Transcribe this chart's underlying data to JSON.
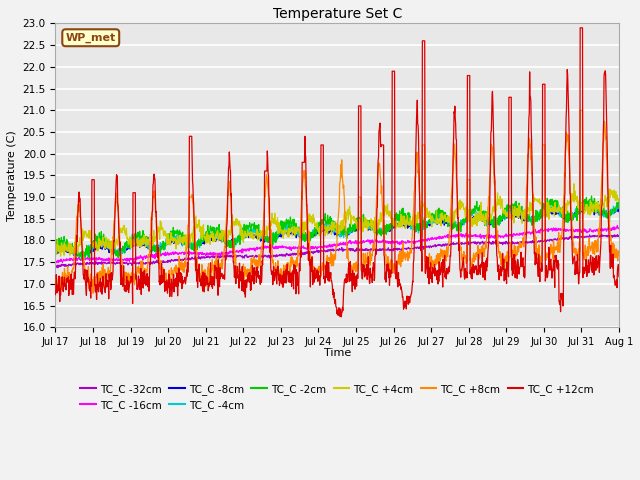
{
  "title": "Temperature Set C",
  "xlabel": "Time",
  "ylabel": "Temperature (C)",
  "ylim": [
    16.0,
    23.0
  ],
  "yticks": [
    16.0,
    16.5,
    17.0,
    17.5,
    18.0,
    18.5,
    19.0,
    19.5,
    20.0,
    20.5,
    21.0,
    21.5,
    22.0,
    22.5,
    23.0
  ],
  "bg_color": "#e8e8e8",
  "fig_bg_color": "#f2f2f2",
  "grid_color": "#ffffff",
  "annotation_text": "WP_met",
  "annotation_bg": "#ffffcc",
  "annotation_border": "#8B4513",
  "series_colors": {
    "TC_C -32cm": "#aa00cc",
    "TC_C -16cm": "#ff00ff",
    "TC_C -8cm": "#0000dd",
    "TC_C -4cm": "#00cccc",
    "TC_C -2cm": "#00cc00",
    "TC_C +4cm": "#cccc00",
    "TC_C +8cm": "#ff8800",
    "TC_C +12cm": "#dd0000"
  },
  "x_tick_labels": [
    "Jul 17",
    "Jul 18",
    "Jul 19",
    "Jul 20",
    "Jul 21",
    "Jul 22",
    "Jul 23",
    "Jul 24",
    "Jul 25",
    "Jul 26",
    "Jul 27",
    "Jul 28",
    "Jul 29",
    "Jul 30",
    "Jul 31",
    "Aug 1"
  ],
  "n_points": 1440
}
